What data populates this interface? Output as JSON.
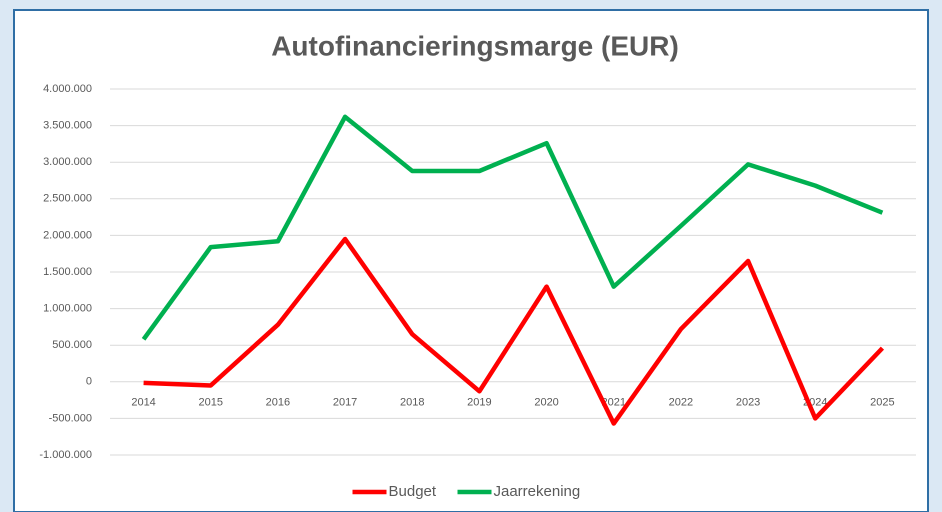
{
  "chart_data": {
    "type": "line",
    "title": "Autofinancieringsmarge (EUR)",
    "categories": [
      "2014",
      "2015",
      "2016",
      "2017",
      "2018",
      "2019",
      "2020",
      "2021",
      "2022",
      "2023",
      "2024",
      "2025"
    ],
    "series": [
      {
        "name": "Budget",
        "color": "#ff0000",
        "values": [
          -15000,
          -50000,
          780000,
          1950000,
          650000,
          -130000,
          1300000,
          -570000,
          720000,
          1650000,
          -500000,
          460000
        ]
      },
      {
        "name": "Jaarrekening",
        "color": "#00b050",
        "values": [
          580000,
          1840000,
          1920000,
          3620000,
          2880000,
          2880000,
          3260000,
          1300000,
          2130000,
          2970000,
          2680000,
          2310000
        ]
      }
    ],
    "ylim": [
      -1000000,
      4000000
    ],
    "yticks": [
      {
        "value": -1000000,
        "label": "-1.000.000"
      },
      {
        "value": -500000,
        "label": "-500.000"
      },
      0,
      {
        "value": 500000,
        "label": "500.000"
      },
      {
        "value": 1000000,
        "label": "1.000.000"
      },
      {
        "value": 1500000,
        "label": "1.500.000"
      },
      {
        "value": 2000000,
        "label": "2.000.000"
      },
      {
        "value": 2500000,
        "label": "2.500.000"
      },
      {
        "value": 3000000,
        "label": "3.000.000"
      },
      {
        "value": 3500000,
        "label": "3.500.000"
      },
      {
        "value": 4000000,
        "label": "4.000.000"
      }
    ],
    "grid": true,
    "legend": "bottom"
  }
}
